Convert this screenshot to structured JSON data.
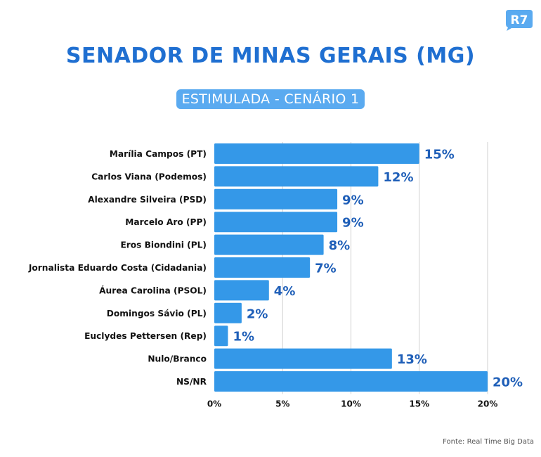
{
  "brand": {
    "logo_text": "R7",
    "logo_color": "#5aaaf0"
  },
  "header": {
    "title": "SENADOR DE MINAS GERAIS (MG)",
    "subtitle": "ESTIMULADA - CENÁRIO 1"
  },
  "footer": {
    "source": "Fonte: Real Time Big Data"
  },
  "colors": {
    "bar": "#3498e8",
    "value_label": "#1f5fb8",
    "title": "#1f6fd1",
    "grid": "#d0d0d0"
  },
  "chart_data": {
    "type": "bar",
    "orientation": "horizontal",
    "title": "SENADOR DE MINAS GERAIS (MG)",
    "subtitle": "ESTIMULADA - CENÁRIO 1",
    "categories": [
      "Marília Campos (PT)",
      "Carlos Viana (Podemos)",
      "Alexandre Silveira (PSD)",
      "Marcelo Aro (PP)",
      "Eros Biondini (PL)",
      "Jornalista Eduardo Costa (Cidadania)",
      "Áurea Carolina (PSOL)",
      "Domingos Sávio (PL)",
      "Euclydes Pettersen (Rep)",
      "Nulo/Branco",
      "NS/NR"
    ],
    "values": [
      15,
      12,
      9,
      9,
      8,
      7,
      4,
      2,
      1,
      13,
      20
    ],
    "value_labels": [
      "15%",
      "12%",
      "9%",
      "9%",
      "8%",
      "7%",
      "4%",
      "2%",
      "1%",
      "13%",
      "20%"
    ],
    "xlim": [
      0,
      20
    ],
    "xticks": [
      0,
      5,
      10,
      15,
      20
    ],
    "xtick_labels": [
      "0%",
      "5%",
      "10%",
      "15%",
      "20%"
    ],
    "xlabel": "",
    "ylabel": "",
    "grid": true,
    "legend": "none"
  }
}
